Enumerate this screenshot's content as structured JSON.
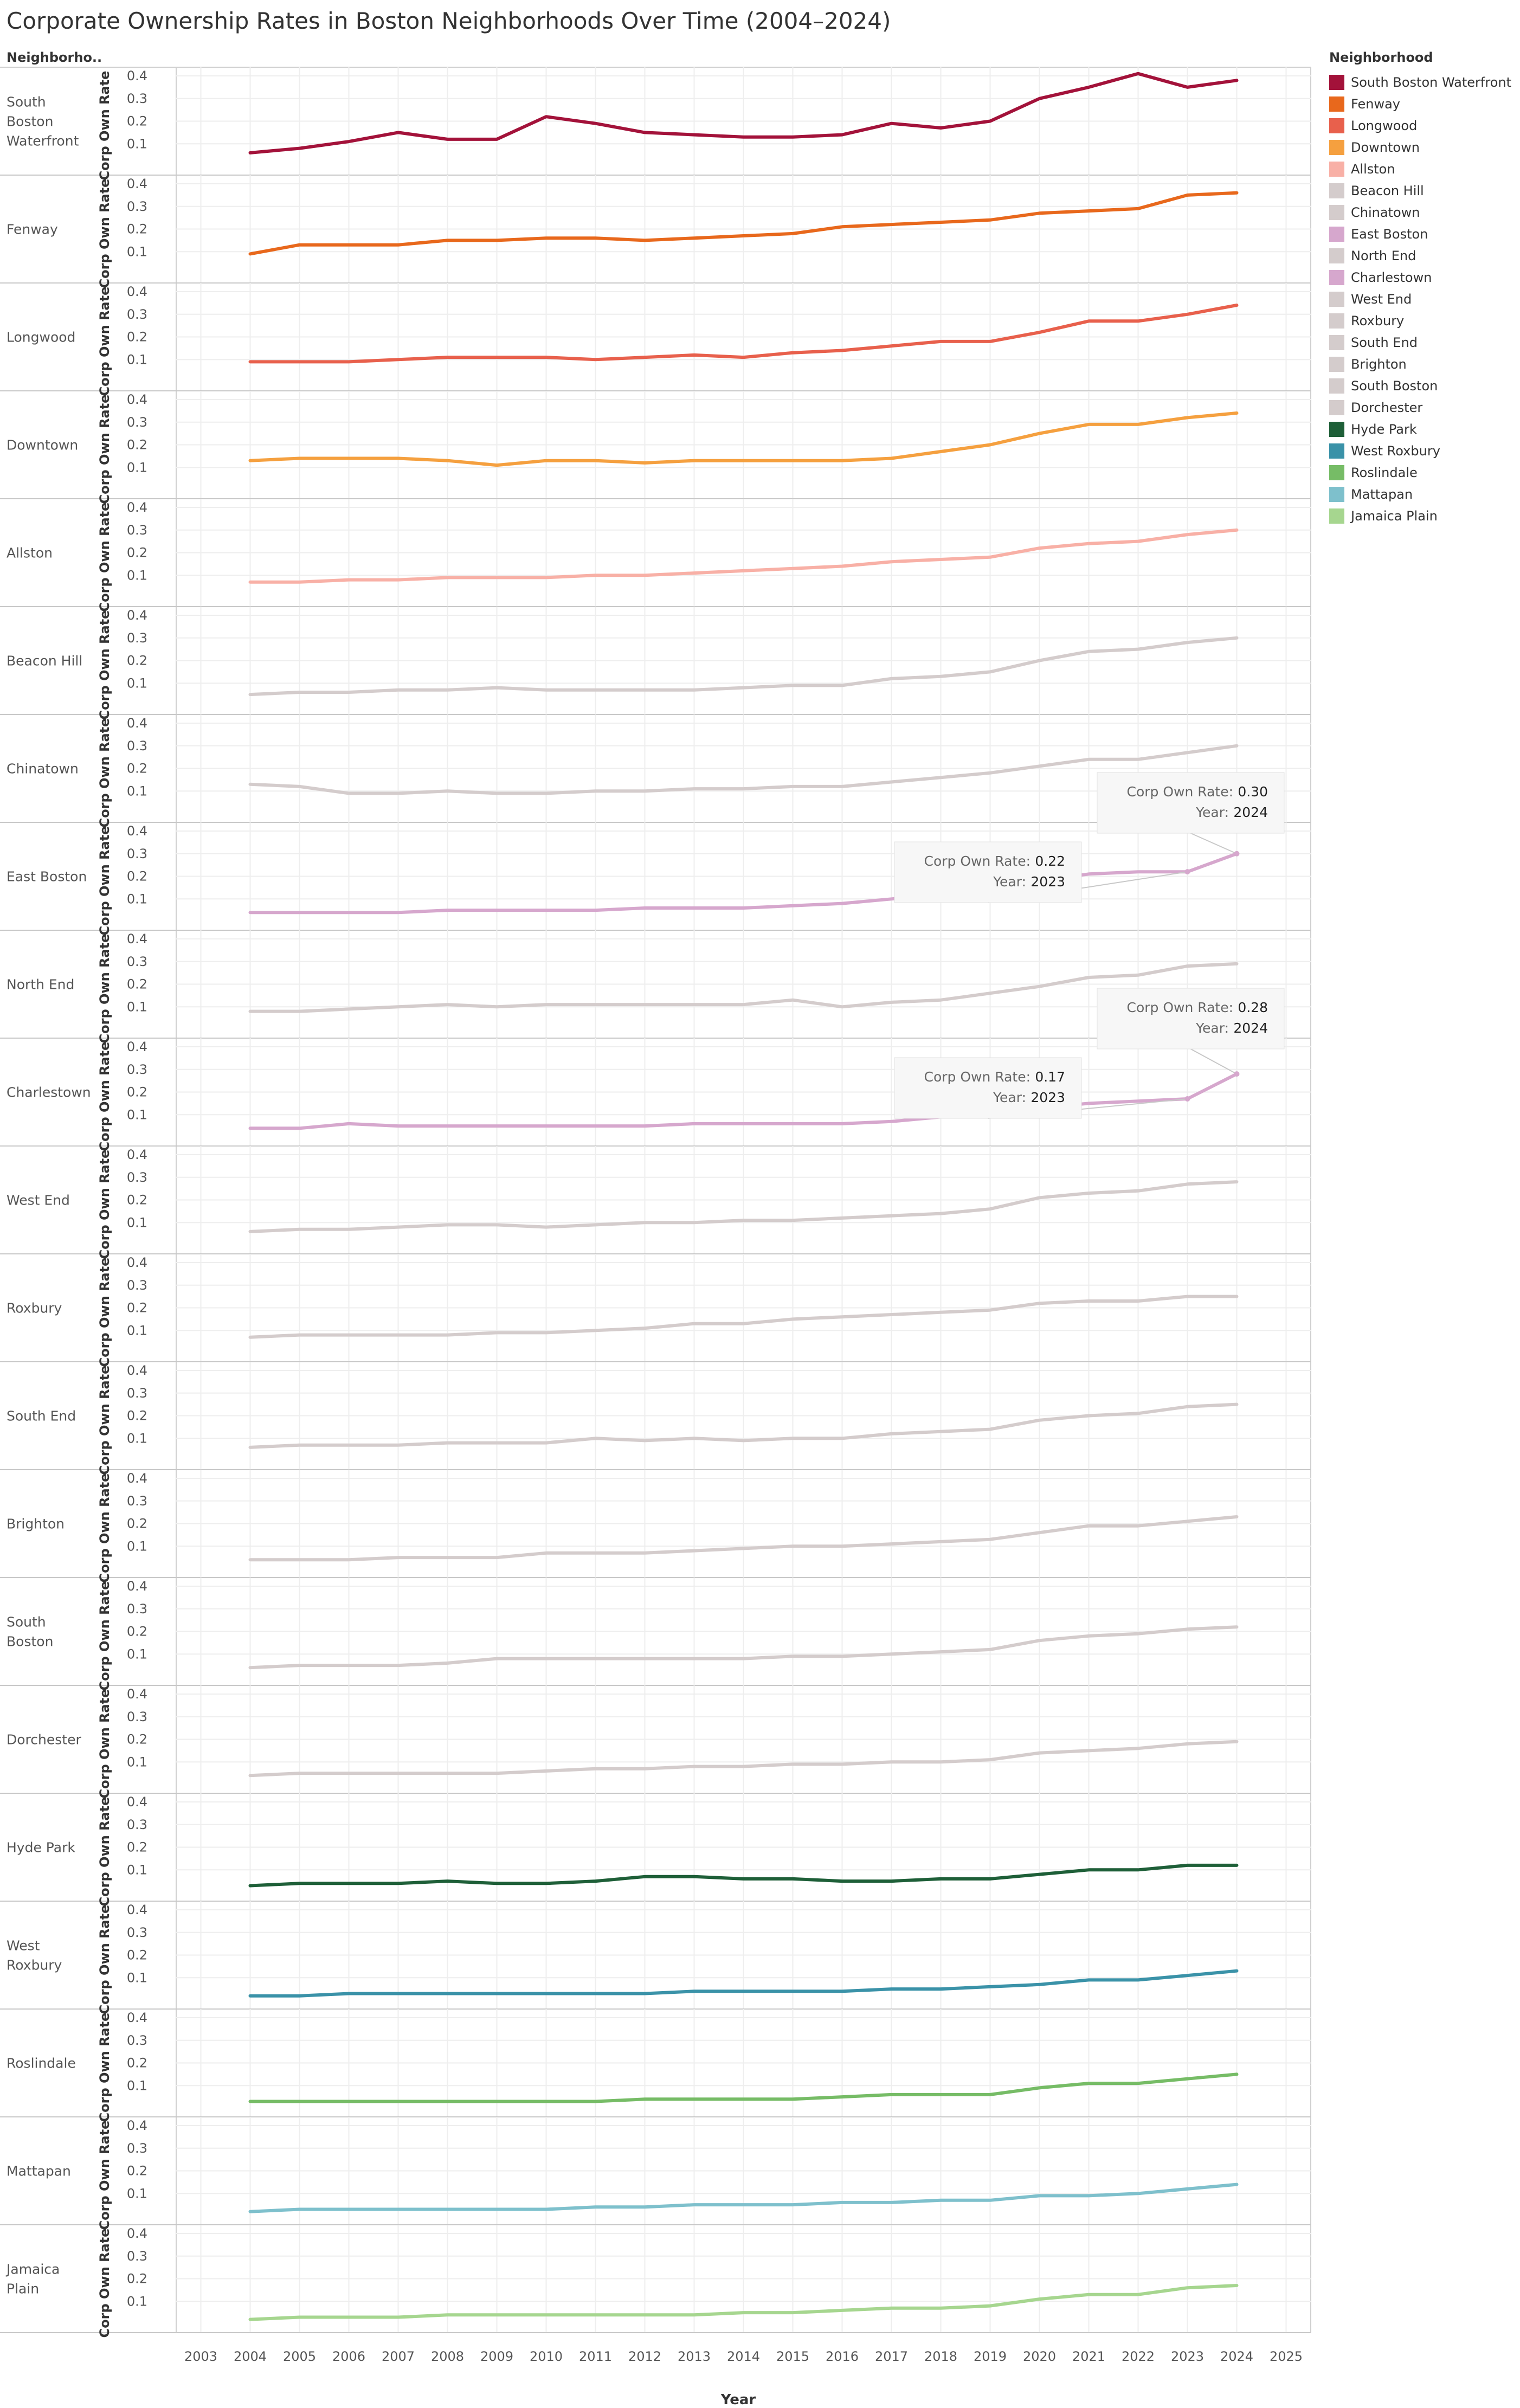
{
  "chart_data": {
    "type": "line",
    "title": "Corporate Ownership Rates in Boston Neighborhoods Over Time (2004–2024)",
    "row_header": "Neighborho..",
    "ylabel": "Corp Own Rate",
    "xlabel": "Year",
    "ylim": [
      0,
      0.4
    ],
    "yticks": [
      "0.1",
      "0.2",
      "0.3",
      "0.4"
    ],
    "xlim": [
      2003,
      2025
    ],
    "xticks": [
      "2003",
      "2004",
      "2005",
      "2006",
      "2007",
      "2008",
      "2009",
      "2010",
      "2011",
      "2012",
      "2013",
      "2014",
      "2015",
      "2016",
      "2017",
      "2018",
      "2019",
      "2020",
      "2021",
      "2022",
      "2023",
      "2024",
      "2025"
    ],
    "x": [
      2004,
      2005,
      2006,
      2007,
      2008,
      2009,
      2010,
      2011,
      2012,
      2013,
      2014,
      2015,
      2016,
      2017,
      2018,
      2019,
      2020,
      2021,
      2022,
      2023,
      2024
    ],
    "grid": true,
    "legend": {
      "title": "Neighborhood",
      "placement": "right"
    },
    "series": [
      {
        "name": "South Boston Waterfront",
        "row_label": [
          "South",
          "Boston",
          "Waterfront"
        ],
        "color": "#a3123a",
        "values": [
          0.06,
          0.08,
          0.11,
          0.15,
          0.12,
          0.12,
          0.22,
          0.19,
          0.15,
          0.14,
          0.13,
          0.13,
          0.14,
          0.19,
          0.17,
          0.2,
          0.3,
          0.35,
          0.41,
          0.35,
          0.38
        ]
      },
      {
        "name": "Fenway",
        "row_label": [
          "Fenway"
        ],
        "color": "#e8681c",
        "values": [
          0.09,
          0.13,
          0.13,
          0.13,
          0.15,
          0.15,
          0.16,
          0.16,
          0.15,
          0.16,
          0.17,
          0.18,
          0.21,
          0.22,
          0.23,
          0.24,
          0.27,
          0.28,
          0.29,
          0.35,
          0.36
        ]
      },
      {
        "name": "Longwood",
        "row_label": [
          "Longwood"
        ],
        "color": "#e8604c",
        "values": [
          0.09,
          0.09,
          0.09,
          0.1,
          0.11,
          0.11,
          0.11,
          0.1,
          0.11,
          0.12,
          0.11,
          0.13,
          0.14,
          0.16,
          0.18,
          0.18,
          0.22,
          0.27,
          0.27,
          0.3,
          0.34
        ]
      },
      {
        "name": "Downtown",
        "row_label": [
          "Downtown"
        ],
        "color": "#f5a03f",
        "values": [
          0.13,
          0.14,
          0.14,
          0.14,
          0.13,
          0.11,
          0.13,
          0.13,
          0.12,
          0.13,
          0.13,
          0.13,
          0.13,
          0.14,
          0.17,
          0.2,
          0.25,
          0.29,
          0.29,
          0.32,
          0.34
        ]
      },
      {
        "name": "Allston",
        "row_label": [
          "Allston"
        ],
        "color": "#f8b0a6",
        "values": [
          0.07,
          0.07,
          0.08,
          0.08,
          0.09,
          0.09,
          0.09,
          0.1,
          0.1,
          0.11,
          0.12,
          0.13,
          0.14,
          0.16,
          0.17,
          0.18,
          0.22,
          0.24,
          0.25,
          0.28,
          0.3
        ]
      },
      {
        "name": "Beacon Hill",
        "row_label": [
          "Beacon Hill"
        ],
        "color": "#d4cccc",
        "values": [
          0.05,
          0.06,
          0.06,
          0.07,
          0.07,
          0.08,
          0.07,
          0.07,
          0.07,
          0.07,
          0.08,
          0.09,
          0.09,
          0.12,
          0.13,
          0.15,
          0.2,
          0.24,
          0.25,
          0.28,
          0.3
        ]
      },
      {
        "name": "Chinatown",
        "row_label": [
          "Chinatown"
        ],
        "color": "#d4cccc",
        "values": [
          0.13,
          0.12,
          0.09,
          0.09,
          0.1,
          0.09,
          0.09,
          0.1,
          0.1,
          0.11,
          0.11,
          0.12,
          0.12,
          0.14,
          0.16,
          0.18,
          0.21,
          0.24,
          0.24,
          0.27,
          0.3
        ]
      },
      {
        "name": "East Boston",
        "row_label": [
          "East Boston"
        ],
        "color": "#d6a7cd",
        "values": [
          0.04,
          0.04,
          0.04,
          0.04,
          0.05,
          0.05,
          0.05,
          0.05,
          0.06,
          0.06,
          0.06,
          0.07,
          0.08,
          0.1,
          0.12,
          0.13,
          0.18,
          0.21,
          0.22,
          0.22,
          0.3
        ],
        "tooltips": [
          {
            "label": "Corp Own Rate:",
            "value": "0.30",
            "year_label": "Year:",
            "year": "2024"
          },
          {
            "label": "Corp Own Rate:",
            "value": "0.22",
            "year_label": "Year:",
            "year": "2023"
          }
        ]
      },
      {
        "name": "North End",
        "row_label": [
          "North End"
        ],
        "color": "#d4cccc",
        "values": [
          0.08,
          0.08,
          0.09,
          0.1,
          0.11,
          0.1,
          0.11,
          0.11,
          0.11,
          0.11,
          0.11,
          0.13,
          0.1,
          0.12,
          0.13,
          0.16,
          0.19,
          0.23,
          0.24,
          0.28,
          0.29
        ]
      },
      {
        "name": "Charlestown",
        "row_label": [
          "Charlestown"
        ],
        "color": "#d6a7cd",
        "values": [
          0.04,
          0.04,
          0.06,
          0.05,
          0.05,
          0.05,
          0.05,
          0.05,
          0.05,
          0.06,
          0.06,
          0.06,
          0.06,
          0.07,
          0.09,
          0.1,
          0.13,
          0.15,
          0.16,
          0.17,
          0.28
        ],
        "tooltips": [
          {
            "label": "Corp Own Rate:",
            "value": "0.28",
            "year_label": "Year:",
            "year": "2024"
          },
          {
            "label": "Corp Own Rate:",
            "value": "0.17",
            "year_label": "Year:",
            "year": "2023"
          }
        ]
      },
      {
        "name": "West End",
        "row_label": [
          "West End"
        ],
        "color": "#d4cccc",
        "values": [
          0.06,
          0.07,
          0.07,
          0.08,
          0.09,
          0.09,
          0.08,
          0.09,
          0.1,
          0.1,
          0.11,
          0.11,
          0.12,
          0.13,
          0.14,
          0.16,
          0.21,
          0.23,
          0.24,
          0.27,
          0.28
        ]
      },
      {
        "name": "Roxbury",
        "row_label": [
          "Roxbury"
        ],
        "color": "#d4cccc",
        "values": [
          0.07,
          0.08,
          0.08,
          0.08,
          0.08,
          0.09,
          0.09,
          0.1,
          0.11,
          0.13,
          0.13,
          0.15,
          0.16,
          0.17,
          0.18,
          0.19,
          0.22,
          0.23,
          0.23,
          0.25,
          0.25
        ]
      },
      {
        "name": "South End",
        "row_label": [
          "South End"
        ],
        "color": "#d4cccc",
        "values": [
          0.06,
          0.07,
          0.07,
          0.07,
          0.08,
          0.08,
          0.08,
          0.1,
          0.09,
          0.1,
          0.09,
          0.1,
          0.1,
          0.12,
          0.13,
          0.14,
          0.18,
          0.2,
          0.21,
          0.24,
          0.25
        ]
      },
      {
        "name": "Brighton",
        "row_label": [
          "Brighton"
        ],
        "color": "#d4cccc",
        "values": [
          0.04,
          0.04,
          0.04,
          0.05,
          0.05,
          0.05,
          0.07,
          0.07,
          0.07,
          0.08,
          0.09,
          0.1,
          0.1,
          0.11,
          0.12,
          0.13,
          0.16,
          0.19,
          0.19,
          0.21,
          0.23
        ]
      },
      {
        "name": "South Boston",
        "row_label": [
          "South",
          "Boston"
        ],
        "color": "#d4cccc",
        "values": [
          0.04,
          0.05,
          0.05,
          0.05,
          0.06,
          0.08,
          0.08,
          0.08,
          0.08,
          0.08,
          0.08,
          0.09,
          0.09,
          0.1,
          0.11,
          0.12,
          0.16,
          0.18,
          0.19,
          0.21,
          0.22
        ]
      },
      {
        "name": "Dorchester",
        "row_label": [
          "Dorchester"
        ],
        "color": "#d4cccc",
        "values": [
          0.04,
          0.05,
          0.05,
          0.05,
          0.05,
          0.05,
          0.06,
          0.07,
          0.07,
          0.08,
          0.08,
          0.09,
          0.09,
          0.1,
          0.1,
          0.11,
          0.14,
          0.15,
          0.16,
          0.18,
          0.19
        ]
      },
      {
        "name": "Hyde Park",
        "row_label": [
          "Hyde Park"
        ],
        "color": "#1e5f38",
        "values": [
          0.03,
          0.04,
          0.04,
          0.04,
          0.05,
          0.04,
          0.04,
          0.05,
          0.07,
          0.07,
          0.06,
          0.06,
          0.05,
          0.05,
          0.06,
          0.06,
          0.08,
          0.1,
          0.1,
          0.12,
          0.12
        ]
      },
      {
        "name": "West Roxbury",
        "row_label": [
          "West",
          "Roxbury"
        ],
        "color": "#3a92a8",
        "values": [
          0.02,
          0.02,
          0.03,
          0.03,
          0.03,
          0.03,
          0.03,
          0.03,
          0.03,
          0.04,
          0.04,
          0.04,
          0.04,
          0.05,
          0.05,
          0.06,
          0.07,
          0.09,
          0.09,
          0.11,
          0.13
        ]
      },
      {
        "name": "Roslindale",
        "row_label": [
          "Roslindale"
        ],
        "color": "#76bc66",
        "values": [
          0.03,
          0.03,
          0.03,
          0.03,
          0.03,
          0.03,
          0.03,
          0.03,
          0.04,
          0.04,
          0.04,
          0.04,
          0.05,
          0.06,
          0.06,
          0.06,
          0.09,
          0.11,
          0.11,
          0.13,
          0.15
        ]
      },
      {
        "name": "Mattapan",
        "row_label": [
          "Mattapan"
        ],
        "color": "#7ec0cc",
        "values": [
          0.02,
          0.03,
          0.03,
          0.03,
          0.03,
          0.03,
          0.03,
          0.04,
          0.04,
          0.05,
          0.05,
          0.05,
          0.06,
          0.06,
          0.07,
          0.07,
          0.09,
          0.09,
          0.1,
          0.12,
          0.14
        ]
      },
      {
        "name": "Jamaica Plain",
        "row_label": [
          "Jamaica",
          "Plain"
        ],
        "color": "#a6d68f",
        "values": [
          0.02,
          0.03,
          0.03,
          0.03,
          0.04,
          0.04,
          0.04,
          0.04,
          0.04,
          0.04,
          0.05,
          0.05,
          0.06,
          0.07,
          0.07,
          0.08,
          0.11,
          0.13,
          0.13,
          0.16,
          0.17
        ]
      }
    ]
  }
}
